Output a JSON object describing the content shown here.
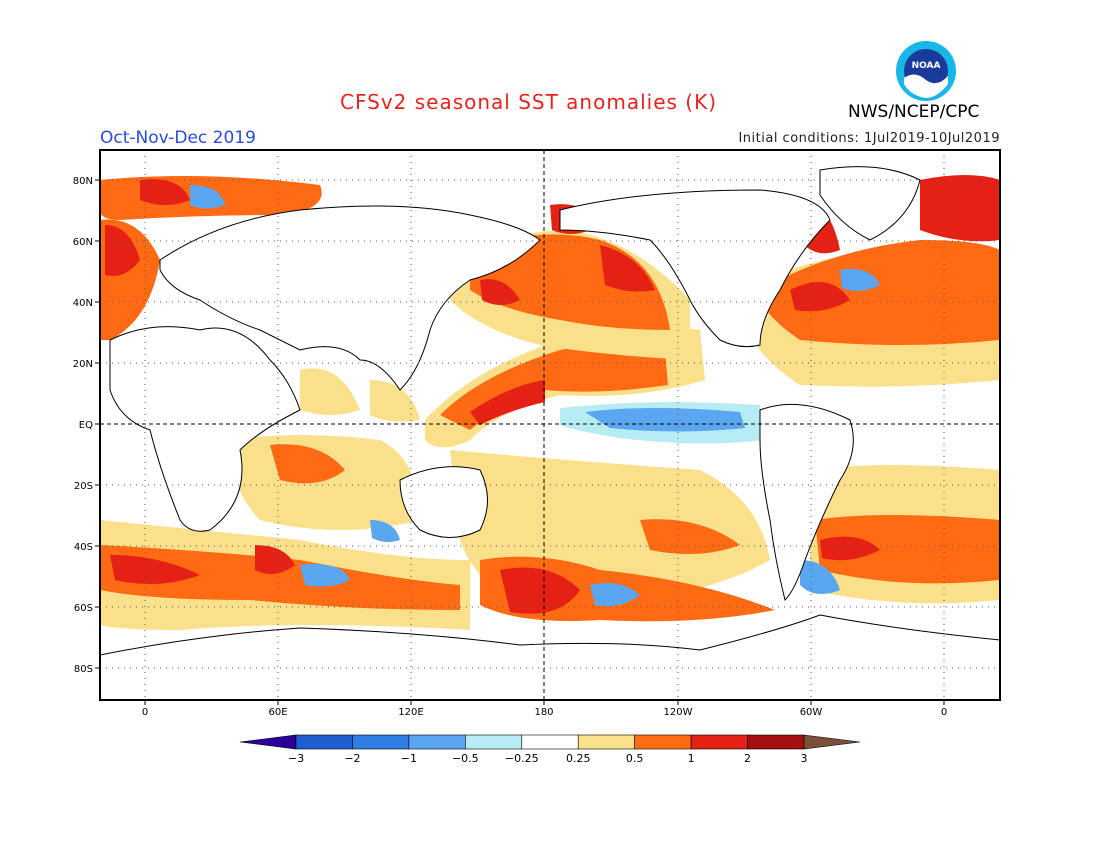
{
  "title": "CFSv2 seasonal SST anomalies (K)",
  "period": "Oct-Nov-Dec 2019",
  "initial_conditions": "Initial conditions: 1Jul2019-10Jul2019",
  "agency": "NWS/NCEP/CPC",
  "logo_text": "NOAA",
  "colors": {
    "title": "#e8231e",
    "period": "#2a4bd7",
    "land": "#ffffff",
    "ocean_neutral": "#ffffff"
  },
  "map": {
    "lat_labels": [
      "80N",
      "60N",
      "40N",
      "20N",
      "EQ",
      "20S",
      "40S",
      "60S",
      "80S"
    ],
    "lon_labels": [
      "0",
      "60E",
      "120E",
      "180",
      "120W",
      "60W",
      "0"
    ]
  },
  "colorbar": {
    "unit": "K",
    "labels": [
      "-3",
      "-2",
      "-1",
      "-0.5",
      "-0.25",
      "0.25",
      "0.5",
      "1",
      "2",
      "3"
    ],
    "colors": [
      "#2b0099",
      "#1f5fd1",
      "#2f7ee6",
      "#5aa6f0",
      "#b8ecf5",
      "#ffffff",
      "#fbe08c",
      "#ff6a13",
      "#e42114",
      "#a50f0f",
      "#7b4f3a"
    ]
  }
}
